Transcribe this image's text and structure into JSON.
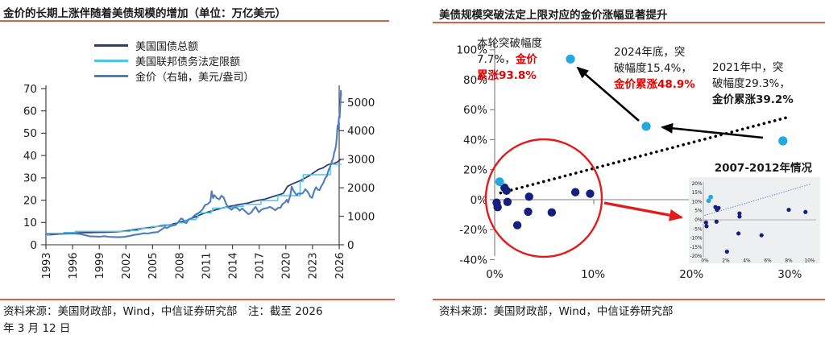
{
  "left_panel": {
    "title": "金价的长期上涨伴随着美债规模的增加（单位：万亿美元）",
    "legend": [
      {
        "label": "美国国债总额",
        "color": "#2e3c74"
      },
      {
        "label": "美国联邦债务法定限额",
        "color": "#4cc5e9"
      },
      {
        "label": "金价（右轴，美元/盎司）",
        "color": "#4d7dbd"
      }
    ],
    "source_note_line1": "资料来源：美国财政部，Wind，中信证券研究部　注：截至 2026",
    "source_note_line2": "年 3 月 12 日"
  },
  "right_panel": {
    "title": "美债规模突破法定上限对应的金价涨幅显著提升",
    "annotation_current": {
      "line1": "本轮突破幅度",
      "line2_black": "7.7%，",
      "line2_red": "金价",
      "line3_red": "累涨93.8%"
    },
    "annotation_2024": {
      "line1": "2024年底，突",
      "line2": "破幅度15.4%，",
      "line3_red": "金价累涨48.9%"
    },
    "annotation_2021": {
      "line1": "2021年中，突",
      "line2": "破幅度29.3%，",
      "line3_bold": "金价累涨39.2%"
    },
    "inset_title": "2007-2012年情况",
    "source_note": "资料来源：美国财政部，Wind，中信证券研究部"
  },
  "colors": {
    "accent_underline": "#d95f4e",
    "red_annotation_text": "#e60000",
    "red_shape": "#e11c1c",
    "navy_dot": "#16207c",
    "cyan_dot": "#25a7e0",
    "axis_gray": "#7f7f7f",
    "axis_dark": "#333333"
  },
  "chart_data": [
    {
      "type": "line",
      "title": "金价的长期上涨伴随着美债规模的增加（单位：万亿美元）",
      "x_tick_labels": [
        "1993",
        "1996",
        "1999",
        "2002",
        "2005",
        "2008",
        "2011",
        "2014",
        "2017",
        "2020",
        "2023",
        "2026"
      ],
      "x_range": [
        1993,
        2026.25
      ],
      "y_left": {
        "tick_labels": [
          "0",
          "10",
          "20",
          "30",
          "40",
          "50",
          "60",
          "70"
        ],
        "range": [
          0,
          70
        ]
      },
      "y_right": {
        "tick_labels": [
          "0",
          "1000",
          "2000",
          "3000",
          "4000",
          "5000"
        ],
        "range": [
          0,
          5500
        ]
      },
      "series": [
        {
          "name": "美国国债总额",
          "axis": "left",
          "color": "#2e3c74",
          "width": 1.8,
          "points": [
            [
              1993,
              4.35
            ],
            [
              1994,
              4.65
            ],
            [
              1995,
              4.95
            ],
            [
              1996,
              5.2
            ],
            [
              1997,
              5.4
            ],
            [
              1998,
              5.5
            ],
            [
              1999,
              5.6
            ],
            [
              2000,
              5.65
            ],
            [
              2001,
              5.8
            ],
            [
              2002,
              6.2
            ],
            [
              2003,
              6.8
            ],
            [
              2004,
              7.4
            ],
            [
              2005,
              7.9
            ],
            [
              2006,
              8.5
            ],
            [
              2007,
              9.0
            ],
            [
              2008,
              10.0
            ],
            [
              2008.7,
              10.7
            ],
            [
              2009.7,
              12.3
            ],
            [
              2010.7,
              14.0
            ],
            [
              2011.7,
              15.2
            ],
            [
              2012.7,
              16.3
            ],
            [
              2013.7,
              17.2
            ],
            [
              2014.7,
              18.0
            ],
            [
              2015.7,
              18.7
            ],
            [
              2016.7,
              19.8
            ],
            [
              2017.7,
              20.5
            ],
            [
              2018.7,
              21.8
            ],
            [
              2019.7,
              23.0
            ],
            [
              2020.2,
              26.2
            ],
            [
              2020.7,
              27.2
            ],
            [
              2021.7,
              28.9
            ],
            [
              2022.7,
              31.1
            ],
            [
              2023.2,
              32.5
            ],
            [
              2023.7,
              33.8
            ],
            [
              2024.2,
              34.5
            ],
            [
              2024.7,
              35.8
            ],
            [
              2025,
              36.2
            ],
            [
              2025.4,
              36.4
            ],
            [
              2025.8,
              37.1
            ],
            [
              2026.15,
              38.3
            ]
          ]
        },
        {
          "name": "美国联邦债务法定限额",
          "axis": "left",
          "color": "#4cc5e9",
          "width": 1.5,
          "points": [
            [
              1993,
              4.37
            ],
            [
              1993.4,
              4.37
            ],
            [
              1993.4,
              4.9
            ],
            [
              1995,
              4.9
            ],
            [
              1995,
              5.5
            ],
            [
              1996.3,
              5.5
            ],
            [
              1996.3,
              6.0
            ],
            [
              2002.5,
              6.0
            ],
            [
              2002.5,
              6.4
            ],
            [
              2003.4,
              6.4
            ],
            [
              2003.4,
              7.4
            ],
            [
              2004.9,
              7.4
            ],
            [
              2004.9,
              8.2
            ],
            [
              2006.2,
              8.2
            ],
            [
              2006.2,
              9.0
            ],
            [
              2007.7,
              9.0
            ],
            [
              2007.7,
              9.8
            ],
            [
              2008.6,
              9.8
            ],
            [
              2008.6,
              10.6
            ],
            [
              2008.9,
              10.6
            ],
            [
              2008.9,
              11.3
            ],
            [
              2009.9,
              11.3
            ],
            [
              2009.9,
              12.1
            ],
            [
              2010.1,
              12.1
            ],
            [
              2010.1,
              14.3
            ],
            [
              2011.6,
              14.3
            ],
            [
              2011.6,
              15.2
            ],
            [
              2011.75,
              15.2
            ],
            [
              2011.75,
              16.4
            ],
            [
              2013.1,
              16.4
            ],
            [
              2013.1,
              16.7
            ],
            [
              2014.1,
              16.7
            ],
            [
              2014.1,
              17.2
            ],
            [
              2015.2,
              17.2
            ],
            [
              2015.2,
              18.1
            ],
            [
              2017.2,
              18.1
            ],
            [
              2017.2,
              19.8
            ],
            [
              2019.1,
              19.8
            ],
            [
              2019.1,
              22.0
            ],
            [
              2021.6,
              22.0
            ],
            [
              2021.6,
              28.4
            ],
            [
              2021.95,
              28.4
            ],
            [
              2021.95,
              31.4
            ],
            [
              2025.0,
              31.4
            ],
            [
              2025.0,
              36.1
            ],
            [
              2026.2,
              36.1
            ]
          ]
        },
        {
          "name": "金价（右轴，美元/盎司）",
          "axis": "right",
          "color": "#4d7dbd",
          "width": 2.1,
          "points": [
            [
              1993,
              375
            ],
            [
              1993.5,
              385
            ],
            [
              1994,
              383
            ],
            [
              1995,
              386
            ],
            [
              1996,
              397
            ],
            [
              1996.7,
              383
            ],
            [
              1997.5,
              330
            ],
            [
              1998,
              294
            ],
            [
              1998.5,
              290
            ],
            [
              1999,
              283
            ],
            [
              1999.6,
              301
            ],
            [
              2000,
              283
            ],
            [
              2000.7,
              272
            ],
            [
              2001.2,
              265
            ],
            [
              2001.8,
              278
            ],
            [
              2002.5,
              315
            ],
            [
              2003,
              350
            ],
            [
              2003.5,
              370
            ],
            [
              2004,
              405
            ],
            [
              2004.5,
              395
            ],
            [
              2005,
              428
            ],
            [
              2005.6,
              445
            ],
            [
              2005.9,
              510
            ],
            [
              2006.4,
              620
            ],
            [
              2006.6,
              585
            ],
            [
              2007,
              655
            ],
            [
              2007.6,
              700
            ],
            [
              2007.9,
              800
            ],
            [
              2008.2,
              920
            ],
            [
              2008.4,
              900
            ],
            [
              2008.6,
              790
            ],
            [
              2008.8,
              760
            ],
            [
              2009.1,
              900
            ],
            [
              2009.4,
              930
            ],
            [
              2009.8,
              1050
            ],
            [
              2010.2,
              1120
            ],
            [
              2010.6,
              1230
            ],
            [
              2010.9,
              1390
            ],
            [
              2011.2,
              1430
            ],
            [
              2011.5,
              1510
            ],
            [
              2011.65,
              1880
            ],
            [
              2011.8,
              1640
            ],
            [
              2011.95,
              1740
            ],
            [
              2012.2,
              1650
            ],
            [
              2012.5,
              1590
            ],
            [
              2012.75,
              1720
            ],
            [
              2013,
              1660
            ],
            [
              2013.3,
              1420
            ],
            [
              2013.6,
              1290
            ],
            [
              2013.9,
              1230
            ],
            [
              2014.2,
              1320
            ],
            [
              2014.5,
              1290
            ],
            [
              2014.8,
              1200
            ],
            [
              2015.1,
              1270
            ],
            [
              2015.4,
              1180
            ],
            [
              2015.8,
              1070
            ],
            [
              2016.1,
              1130
            ],
            [
              2016.4,
              1260
            ],
            [
              2016.6,
              1330
            ],
            [
              2016.95,
              1140
            ],
            [
              2017.3,
              1240
            ],
            [
              2017.6,
              1270
            ],
            [
              2017.9,
              1290
            ],
            [
              2018.2,
              1330
            ],
            [
              2018.5,
              1280
            ],
            [
              2018.8,
              1210
            ],
            [
              2019.1,
              1290
            ],
            [
              2019.4,
              1300
            ],
            [
              2019.6,
              1420
            ],
            [
              2019.9,
              1490
            ],
            [
              2020.1,
              1580
            ],
            [
              2020.25,
              1480
            ],
            [
              2020.5,
              1720
            ],
            [
              2020.65,
              2040
            ],
            [
              2020.9,
              1880
            ],
            [
              2021.2,
              1740
            ],
            [
              2021.4,
              1800
            ],
            [
              2021.7,
              1790
            ],
            [
              2021.9,
              1810
            ],
            [
              2022.2,
              1950
            ],
            [
              2022.5,
              1840
            ],
            [
              2022.75,
              1680
            ],
            [
              2022.95,
              1650
            ],
            [
              2023.2,
              1890
            ],
            [
              2023.4,
              2020
            ],
            [
              2023.6,
              1930
            ],
            [
              2023.8,
              1920
            ],
            [
              2024,
              2060
            ],
            [
              2024.2,
              2160
            ],
            [
              2024.45,
              2350
            ],
            [
              2024.6,
              2400
            ],
            [
              2024.8,
              2620
            ],
            [
              2025,
              2750
            ],
            [
              2025.15,
              2900
            ],
            [
              2025.3,
              3020
            ],
            [
              2025.45,
              3240
            ],
            [
              2025.55,
              3330
            ],
            [
              2025.65,
              3480
            ],
            [
              2025.75,
              3820
            ],
            [
              2025.82,
              4180
            ],
            [
              2025.88,
              4060
            ],
            [
              2025.95,
              4380
            ],
            [
              2026,
              4500
            ],
            [
              2026.05,
              4460
            ],
            [
              2026.1,
              4780
            ],
            [
              2026.15,
              5100
            ],
            [
              2026.19,
              5400
            ],
            [
              2026.22,
              5230
            ]
          ]
        }
      ]
    },
    {
      "type": "scatter",
      "title": "美债规模突破法定上限对应的金价涨幅显著提升",
      "x_tick_labels": [
        "0%",
        "10%",
        "20%",
        "30%"
      ],
      "x_tick_values": [
        0,
        10,
        20,
        30
      ],
      "y_tick_labels": [
        "100%",
        "80%",
        "60%",
        "40%",
        "20%",
        "0%",
        "-20%",
        "-40%"
      ],
      "y_tick_values": [
        100,
        80,
        60,
        40,
        20,
        0,
        -20,
        -40
      ],
      "highlight_points": [
        {
          "name": "本轮",
          "x": 7.7,
          "y": 93.8
        },
        {
          "name": "2024年底",
          "x": 15.4,
          "y": 48.9
        },
        {
          "name": "2021年中",
          "x": 29.3,
          "y": 39.2
        }
      ],
      "cluster_points_navy": [
        [
          0.2,
          -2
        ],
        [
          0.3,
          -5
        ],
        [
          1.0,
          8
        ],
        [
          1.2,
          6
        ],
        [
          1.3,
          -1.5
        ],
        [
          3.5,
          2
        ],
        [
          3.4,
          -8
        ],
        [
          2.3,
          -17
        ],
        [
          5.8,
          -8.5
        ],
        [
          8.2,
          5
        ],
        [
          9.7,
          4
        ]
      ],
      "cluster_points_cyan": [
        [
          0.5,
          12
        ]
      ],
      "trendline": {
        "start": [
          0.6,
          4.5
        ],
        "end": [
          29.8,
          55
        ],
        "style": "dotted"
      },
      "inset": {
        "title": "2007-2012年情况",
        "x_tick_labels": [
          "0%",
          "2%",
          "4%",
          "6%",
          "8%",
          "10%"
        ],
        "x_tick_values": [
          0,
          2,
          4,
          6,
          8,
          10
        ],
        "y_tick_labels": [
          "20%",
          "15%",
          "10%",
          "5%",
          "0%",
          "-5%",
          "-10%",
          "-15%",
          "-20%"
        ],
        "y_tick_values": [
          20,
          15,
          10,
          5,
          0,
          -5,
          -10,
          -15,
          -20
        ],
        "points_navy": [
          [
            0.1,
            -1.5
          ],
          [
            0.15,
            -3.5
          ],
          [
            1.0,
            7
          ],
          [
            1.15,
            5.5
          ],
          [
            1.3,
            6.5
          ],
          [
            1.1,
            -1
          ],
          [
            2.1,
            -17.5
          ],
          [
            3.3,
            3.5
          ],
          [
            3.3,
            1.8
          ],
          [
            3.2,
            -7.5
          ],
          [
            5.4,
            -8.5
          ],
          [
            8.0,
            5.5
          ],
          [
            9.6,
            4.3
          ]
        ],
        "points_cyan": [
          [
            0.35,
            10.5
          ],
          [
            0.55,
            12.5
          ]
        ],
        "trendline": {
          "start": [
            0,
            2.5
          ],
          "end": [
            10,
            19.5
          ],
          "style": "dotted"
        }
      }
    }
  ]
}
